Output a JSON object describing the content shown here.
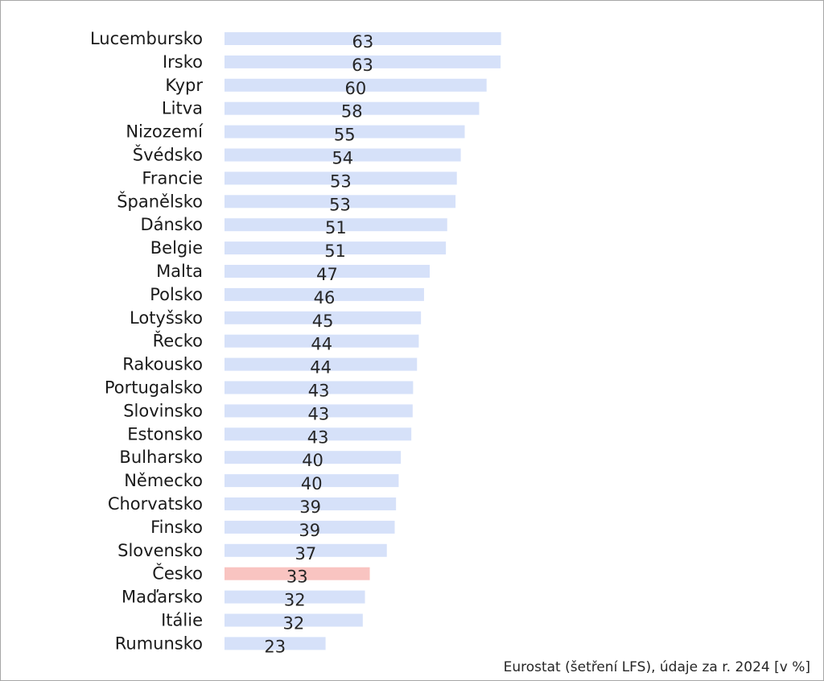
{
  "chart_data": {
    "type": "bar",
    "orientation": "horizontal",
    "categories": [
      "Lucembursko",
      "Irsko",
      "Kypr",
      "Litva",
      "Nizozemí",
      "Švédsko",
      "Francie",
      "Španělsko",
      "Dánsko",
      "Belgie",
      "Malta",
      "Polsko",
      "Lotyšsko",
      "Řecko",
      "Rakousko",
      "Portugalsko",
      "Slovinsko",
      "Estonsko",
      "Bulharsko",
      "Německo",
      "Chorvatsko",
      "Finsko",
      "Slovensko",
      "Česko",
      "Maďarsko",
      "Itálie",
      "Rumunsko"
    ],
    "values": [
      63.2,
      63.1,
      59.9,
      58.2,
      54.9,
      54.0,
      53.1,
      52.8,
      50.9,
      50.6,
      46.9,
      45.6,
      44.9,
      44.4,
      44.0,
      43.1,
      43.0,
      42.7,
      40.3,
      39.8,
      39.2,
      38.9,
      37.1,
      33.2,
      32.1,
      31.6,
      23.1
    ],
    "value_labels": [
      "63",
      "63",
      "60",
      "58",
      "55",
      "54",
      "53",
      "53",
      "51",
      "51",
      "47",
      "46",
      "45",
      "44",
      "44",
      "43",
      "43",
      "43",
      "40",
      "40",
      "39",
      "39",
      "37",
      "33",
      "32",
      "32",
      "23"
    ],
    "highlight": "Česko",
    "colors": {
      "bar": "#d6e1f9",
      "highlight": "#f9c4c1"
    },
    "xlim": [
      0,
      64
    ],
    "grid": false,
    "legend": "none"
  },
  "source_note": "Eurostat (šetření LFS), údaje za r. 2024 [v %]"
}
